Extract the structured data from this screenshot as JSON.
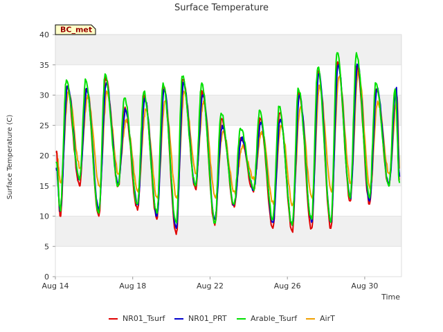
{
  "chart_data": {
    "type": "line",
    "title": "Surface Temperature",
    "site_tag": "BC_met",
    "xlabel": "Time",
    "ylabel": "Surface Temperature (C)",
    "ylim": [
      0,
      40
    ],
    "yticks": [
      0,
      5,
      10,
      15,
      20,
      25,
      30,
      35,
      40
    ],
    "xlim_days": [
      14,
      31.9
    ],
    "xticks": [
      {
        "day": 14,
        "label": "Aug 14"
      },
      {
        "day": 18,
        "label": "Aug 18"
      },
      {
        "day": 22,
        "label": "Aug 22"
      },
      {
        "day": 26,
        "label": "Aug 26"
      },
      {
        "day": 30,
        "label": "Aug 30"
      }
    ],
    "legend_position": "bottom",
    "grid": "horizontal bands",
    "daily": [
      {
        "day": 14,
        "max": [
          31.5,
          31.5,
          32.5,
          30.5
        ],
        "min": [
          10,
          11,
          11,
          15.5
        ]
      },
      {
        "day": 15,
        "max": [
          31,
          31,
          32.5,
          30
        ],
        "min": [
          15,
          16,
          16,
          18
        ]
      },
      {
        "day": 16,
        "max": [
          33,
          32,
          33.5,
          30.5
        ],
        "min": [
          10,
          11,
          10.5,
          15
        ]
      },
      {
        "day": 17,
        "max": [
          28,
          27.5,
          29.5,
          26
        ],
        "min": [
          15,
          15.5,
          15,
          17
        ]
      },
      {
        "day": 18,
        "max": [
          30,
          29.5,
          30.5,
          27.5
        ],
        "min": [
          11,
          12,
          12,
          14
        ]
      },
      {
        "day": 19,
        "max": [
          31.5,
          31,
          32,
          29
        ],
        "min": [
          9.5,
          10,
          10.5,
          13
        ]
      },
      {
        "day": 20,
        "max": [
          32.5,
          32,
          33,
          30.5
        ],
        "min": [
          7,
          8,
          9,
          13
        ]
      },
      {
        "day": 21,
        "max": [
          30.5,
          30,
          32,
          29
        ],
        "min": [
          14.5,
          15,
          15,
          17
        ]
      },
      {
        "day": 22,
        "max": [
          26,
          25,
          27,
          24
        ],
        "min": [
          8.5,
          9.5,
          9,
          13
        ]
      },
      {
        "day": 23,
        "max": [
          23,
          23,
          24.5,
          21.5
        ],
        "min": [
          11.5,
          12,
          12,
          14
        ]
      },
      {
        "day": 24,
        "max": [
          26,
          25.5,
          27.5,
          24
        ],
        "min": [
          14,
          14.5,
          14.5,
          16
        ]
      },
      {
        "day": 25,
        "max": [
          27,
          26,
          28,
          25
        ],
        "min": [
          8,
          9,
          9.5,
          12
        ]
      },
      {
        "day": 26,
        "max": [
          30.5,
          30,
          31,
          28
        ],
        "min": [
          7.5,
          8.5,
          8.5,
          12
        ]
      },
      {
        "day": 27,
        "max": [
          34,
          33.5,
          34.5,
          31.5
        ],
        "min": [
          8,
          9,
          9.5,
          13
        ]
      },
      {
        "day": 28,
        "max": [
          35.5,
          35,
          37,
          33
        ],
        "min": [
          8,
          9,
          9,
          14
        ]
      },
      {
        "day": 29,
        "max": [
          35,
          35,
          37,
          34
        ],
        "min": [
          12.5,
          13,
          13,
          15.5
        ]
      },
      {
        "day": 30,
        "max": [
          31,
          31,
          32,
          29
        ],
        "min": [
          12,
          12.5,
          13,
          14.5
        ]
      },
      {
        "day": 31,
        "max": [
          31,
          31,
          31,
          29.5
        ],
        "min": [
          15,
          15,
          15,
          17
        ]
      }
    ],
    "series": [
      {
        "name": "NR01_Tsurf",
        "color": "#e00000"
      },
      {
        "name": "NR01_PRT",
        "color": "#0000cc"
      },
      {
        "name": "Arable_Tsurf",
        "color": "#00e000"
      },
      {
        "name": "AirT",
        "color": "#f0a000"
      }
    ]
  }
}
